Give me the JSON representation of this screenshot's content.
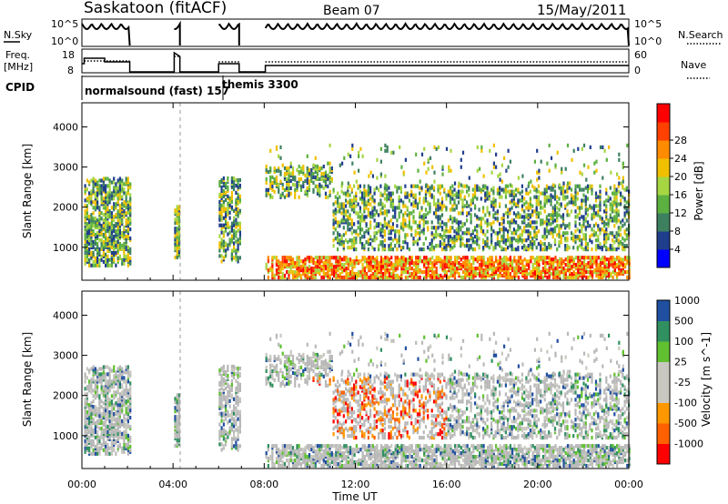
{
  "header": {
    "station": "Saskatoon (fitACF)",
    "beam": "Beam 07",
    "date": "15/May/2011"
  },
  "top_panels": {
    "nsky_label": "N.Sky",
    "nsky_ticks": [
      "10^5",
      "10^0"
    ],
    "nsearch_label": "N.Search",
    "freq_label_1": "Freq.",
    "freq_label_2": "[MHz]",
    "freq_ticks": [
      "18",
      "8"
    ],
    "nave_ticks": [
      "60",
      "0"
    ],
    "nave_label": "Nave",
    "cpid_label": "CPID",
    "modes": [
      "normalsound (fast) 157",
      "themis 3300"
    ]
  },
  "colors": {
    "power": [
      "#0000ff",
      "#1f3e8c",
      "#3d8060",
      "#5cb040",
      "#a6d642",
      "#f0c000",
      "#ff8c00",
      "#ff4000",
      "#ff0000"
    ],
    "velocity": [
      "#ff0000",
      "#ff6000",
      "#ff9800",
      "#c8c8c0",
      "#c8c8c0",
      "#60c030",
      "#309060",
      "#204fa0"
    ],
    "ground_scatter": "#b8b8b8"
  },
  "chart_data": [
    {
      "type": "heatmap",
      "title": "Power",
      "xlabel": "",
      "ylabel": "Slant Range [km]",
      "x_ticks": [
        "00:00",
        "04:00",
        "08:00",
        "12:00",
        "16:00",
        "20:00",
        "00:00"
      ],
      "y_ticks": [
        1000,
        2000,
        3000,
        4000
      ],
      "ylim": [
        180,
        4600
      ],
      "xlim_hours": [
        0,
        24
      ],
      "colorbar_label": "Power [dB]",
      "colorbar_ticks": [
        4,
        8,
        12,
        16,
        20,
        24,
        28
      ],
      "data_gaps_hours": [
        [
          2.1,
          3.8
        ],
        [
          4.3,
          5.9
        ],
        [
          6.9,
          8.0
        ]
      ]
    },
    {
      "type": "heatmap",
      "title": "Velocity",
      "xlabel": "Time UT",
      "ylabel": "Slant Range [km]",
      "x_ticks": [
        "00:00",
        "04:00",
        "08:00",
        "12:00",
        "16:00",
        "20:00",
        "00:00"
      ],
      "y_ticks": [
        1000,
        2000,
        3000,
        4000
      ],
      "ylim": [
        180,
        4600
      ],
      "xlim_hours": [
        0,
        24
      ],
      "colorbar_label": "Velocity [m s^-1]",
      "colorbar_ticks": [
        "1000",
        "500",
        "100",
        "25",
        "-25",
        "-100",
        "-500",
        "-1000"
      ],
      "data_gaps_hours": [
        [
          2.1,
          3.8
        ],
        [
          4.3,
          5.9
        ],
        [
          6.9,
          8.0
        ]
      ]
    }
  ]
}
